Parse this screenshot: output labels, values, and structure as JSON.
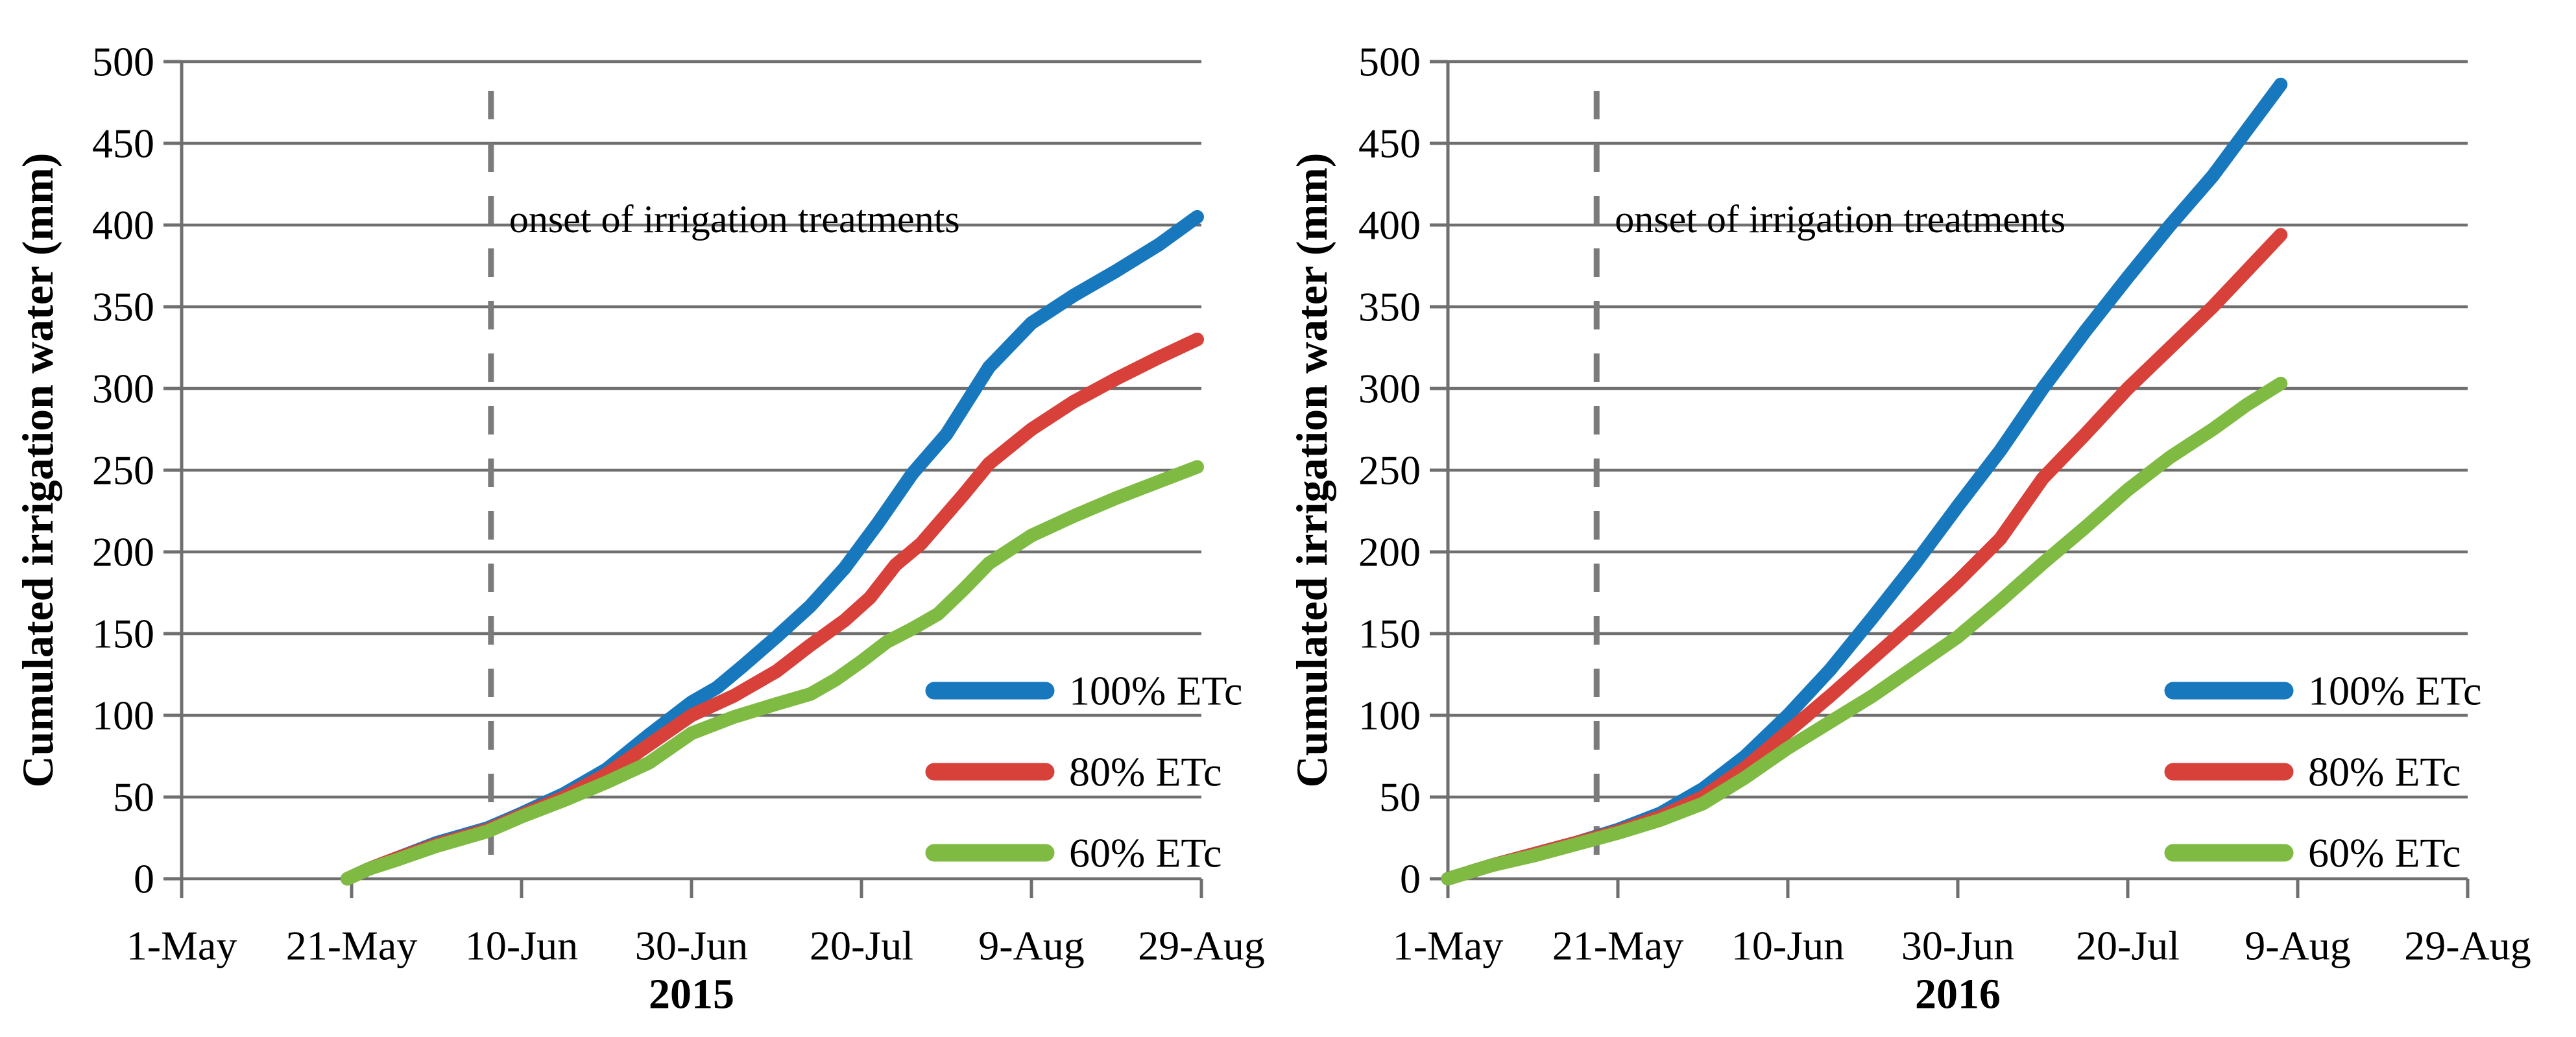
{
  "figure_description": "Two side-by-side line charts of cumulated irrigation water for 2015 and 2016 seasons under three irrigation treatments",
  "palette": {
    "series_100_etc": "#1878BE",
    "series_80_etc": "#D8403A",
    "series_60_etc": "#7FBA42",
    "gridline": "#6F6F6F",
    "axis": "#6F6F6F",
    "dashed_line": "#7B7B7B",
    "text": "#000000",
    "background": "#FFFFFF"
  },
  "chart_data": [
    {
      "type": "line",
      "title": "",
      "xlabel": "2015",
      "ylabel": "Cumulated irrigation water (mm)",
      "ylim": [
        0,
        500
      ],
      "ytick_step": 50,
      "ytick_values": [
        0,
        50,
        100,
        150,
        200,
        250,
        300,
        350,
        400,
        450,
        500
      ],
      "x_tick_labels": [
        "1-May",
        "21-May",
        "10-Jun",
        "30-Jun",
        "20-Jul",
        "9-Aug",
        "29-Aug"
      ],
      "x_tick_days": [
        0,
        20,
        40,
        60,
        80,
        100,
        120
      ],
      "x_range_days": [
        0,
        120
      ],
      "grid": true,
      "legend_position": "inside-right",
      "annotation": {
        "label": "onset of irrigation treatments",
        "day": 36.4
      },
      "series": [
        {
          "name": "100% ETc",
          "color_key": "series_100_etc",
          "points": [
            [
              19.5,
              0
            ],
            [
              22,
              6
            ],
            [
              25,
              12
            ],
            [
              30,
              22
            ],
            [
              36,
              31
            ],
            [
              40,
              40
            ],
            [
              45,
              52
            ],
            [
              50,
              67
            ],
            [
              55,
              88
            ],
            [
              60,
              108
            ],
            [
              63,
              117
            ],
            [
              66,
              130
            ],
            [
              70,
              148
            ],
            [
              74,
              167
            ],
            [
              78,
              190
            ],
            [
              82,
              218
            ],
            [
              86,
              248
            ],
            [
              90,
              272
            ],
            [
              95,
              313
            ],
            [
              100,
              340
            ],
            [
              105,
              357
            ],
            [
              110,
              372
            ],
            [
              115,
              388
            ],
            [
              119.5,
              405
            ]
          ]
        },
        {
          "name": "80% ETc",
          "color_key": "series_80_etc",
          "points": [
            [
              19.5,
              0
            ],
            [
              22,
              6
            ],
            [
              25,
              12
            ],
            [
              30,
              21
            ],
            [
              36,
              30
            ],
            [
              40,
              39
            ],
            [
              45,
              50
            ],
            [
              50,
              64
            ],
            [
              55,
              82
            ],
            [
              60,
              100
            ],
            [
              65,
              112
            ],
            [
              70,
              127
            ],
            [
              74,
              143
            ],
            [
              78,
              158
            ],
            [
              81,
              172
            ],
            [
              84,
              192
            ],
            [
              87,
              205
            ],
            [
              92,
              235
            ],
            [
              95,
              254
            ],
            [
              100,
              275
            ],
            [
              105,
              292
            ],
            [
              110,
              306
            ],
            [
              115,
              319
            ],
            [
              119.5,
              330
            ]
          ]
        },
        {
          "name": "60% ETc",
          "color_key": "series_60_etc",
          "points": [
            [
              19.5,
              0
            ],
            [
              22,
              6
            ],
            [
              25,
              11
            ],
            [
              30,
              20
            ],
            [
              36,
              29
            ],
            [
              40,
              38
            ],
            [
              45,
              48
            ],
            [
              50,
              59
            ],
            [
              55,
              71
            ],
            [
              60,
              89
            ],
            [
              65,
              99
            ],
            [
              70,
              107
            ],
            [
              74,
              113
            ],
            [
              77,
              122
            ],
            [
              80,
              133
            ],
            [
              83,
              145
            ],
            [
              86,
              153
            ],
            [
              89,
              162
            ],
            [
              92,
              177
            ],
            [
              95,
              193
            ],
            [
              100,
              210
            ],
            [
              105,
              222
            ],
            [
              110,
              233
            ],
            [
              115,
              243
            ],
            [
              119.5,
              252
            ]
          ]
        }
      ]
    },
    {
      "type": "line",
      "title": "",
      "xlabel": "2016",
      "ylabel": "Cumulated irrigation water (mm)",
      "ylim": [
        0,
        500
      ],
      "ytick_step": 50,
      "ytick_values": [
        0,
        50,
        100,
        150,
        200,
        250,
        300,
        350,
        400,
        450,
        500
      ],
      "x_tick_labels": [
        "1-May",
        "21-May",
        "10-Jun",
        "30-Jun",
        "20-Jul",
        "9-Aug",
        "29-Aug"
      ],
      "x_tick_days": [
        0,
        20,
        40,
        60,
        80,
        100,
        120
      ],
      "x_range_days": [
        0,
        120
      ],
      "grid": true,
      "legend_position": "inside-right",
      "annotation": {
        "label": "onset of irrigation treatments",
        "day": 17.5
      },
      "series": [
        {
          "name": "100% ETc",
          "color_key": "series_100_etc",
          "points": [
            [
              0,
              0
            ],
            [
              5,
              8
            ],
            [
              10,
              15
            ],
            [
              15,
              22
            ],
            [
              20,
              30
            ],
            [
              25,
              40
            ],
            [
              30,
              55
            ],
            [
              35,
              75
            ],
            [
              40,
              100
            ],
            [
              45,
              128
            ],
            [
              50,
              160
            ],
            [
              55,
              193
            ],
            [
              60,
              228
            ],
            [
              65,
              262
            ],
            [
              70,
              300
            ],
            [
              75,
              335
            ],
            [
              80,
              368
            ],
            [
              85,
              400
            ],
            [
              90,
              430
            ],
            [
              94,
              458
            ],
            [
              98,
              486
            ]
          ]
        },
        {
          "name": "80% ETc",
          "color_key": "series_80_etc",
          "points": [
            [
              0,
              0
            ],
            [
              5,
              8
            ],
            [
              10,
              15
            ],
            [
              15,
              22
            ],
            [
              20,
              29
            ],
            [
              25,
              38
            ],
            [
              30,
              50
            ],
            [
              35,
              68
            ],
            [
              40,
              90
            ],
            [
              45,
              112
            ],
            [
              50,
              135
            ],
            [
              55,
              158
            ],
            [
              60,
              182
            ],
            [
              65,
              208
            ],
            [
              70,
              245
            ],
            [
              75,
              272
            ],
            [
              80,
              300
            ],
            [
              85,
              325
            ],
            [
              90,
              350
            ],
            [
              94,
              372
            ],
            [
              98,
              394
            ]
          ]
        },
        {
          "name": "60% ETc",
          "color_key": "series_60_etc",
          "points": [
            [
              0,
              0
            ],
            [
              5,
              8
            ],
            [
              10,
              14
            ],
            [
              15,
              21
            ],
            [
              20,
              28
            ],
            [
              25,
              36
            ],
            [
              30,
              46
            ],
            [
              35,
              62
            ],
            [
              40,
              80
            ],
            [
              45,
              96
            ],
            [
              50,
              112
            ],
            [
              55,
              130
            ],
            [
              60,
              148
            ],
            [
              65,
              170
            ],
            [
              70,
              193
            ],
            [
              75,
              215
            ],
            [
              80,
              238
            ],
            [
              85,
              258
            ],
            [
              90,
              275
            ],
            [
              94,
              290
            ],
            [
              98,
              303
            ]
          ]
        }
      ]
    }
  ]
}
